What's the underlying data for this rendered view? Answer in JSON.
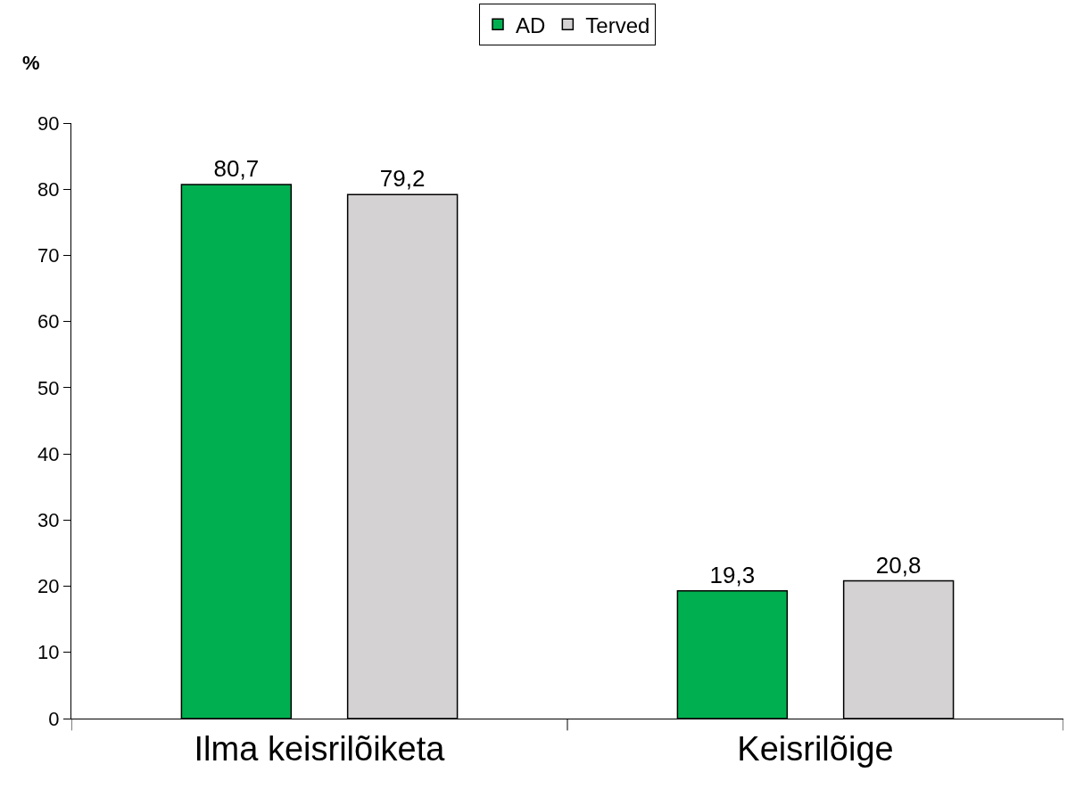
{
  "chart_data": {
    "type": "bar",
    "ylabel": "%",
    "categories": [
      "Ilma keisrilõiketa",
      "Keisrilõige"
    ],
    "series": [
      {
        "name": "AD",
        "color": "#00b050",
        "values": [
          80.7,
          19.3
        ],
        "value_labels": [
          "80,7",
          "19,3"
        ]
      },
      {
        "name": "Terved",
        "color": "#d4d2d3",
        "values": [
          79.2,
          20.8
        ],
        "value_labels": [
          "79,2",
          "20,8"
        ]
      }
    ],
    "ylim": [
      0,
      90
    ],
    "yticks": [
      0,
      10,
      20,
      30,
      40,
      50,
      60,
      70,
      80,
      90
    ],
    "grid": false,
    "legend": "top"
  }
}
